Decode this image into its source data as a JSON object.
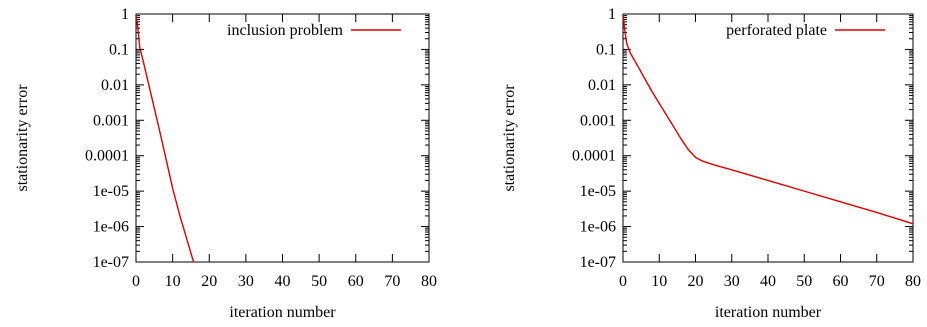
{
  "chart_data": [
    {
      "type": "line",
      "xlabel": "iteration number",
      "ylabel": "stationarity error",
      "xlim": [
        0,
        80
      ],
      "ylim": [
        1e-07,
        1
      ],
      "yscale": "log",
      "xticks": [
        "0",
        "10",
        "20",
        "30",
        "40",
        "50",
        "60",
        "70",
        "80"
      ],
      "yticks": [
        "1e-07",
        "1e-06",
        "1e-05",
        "0.0001",
        "0.001",
        "0.01",
        "0.1",
        "1"
      ],
      "legend_position": "top-right",
      "grid": false,
      "series": [
        {
          "name": "inclusion problem",
          "color": "#dd0000",
          "x": [
            0,
            0.5,
            1,
            2,
            4,
            6,
            8,
            10,
            12,
            14,
            16,
            17.2
          ],
          "y": [
            1,
            0.4,
            0.12,
            0.045,
            0.006,
            0.0008,
            0.0001,
            1.2e-05,
            2e-06,
            4e-07,
            8e-08,
            1e-07
          ]
        }
      ]
    },
    {
      "type": "line",
      "xlabel": "iteration number",
      "ylabel": "stationarity error",
      "xlim": [
        0,
        80
      ],
      "ylim": [
        1e-07,
        1
      ],
      "yscale": "log",
      "xticks": [
        "0",
        "10",
        "20",
        "30",
        "40",
        "50",
        "60",
        "70",
        "80"
      ],
      "yticks": [
        "1e-07",
        "1e-06",
        "1e-05",
        "0.0001",
        "0.001",
        "0.01",
        "0.1",
        "1"
      ],
      "legend_position": "top-right",
      "grid": false,
      "series": [
        {
          "name": "perforated plate",
          "color": "#dd0000",
          "x": [
            0,
            0.5,
            1,
            2,
            4,
            6,
            8,
            10,
            12,
            14,
            16,
            18,
            20,
            22,
            24,
            26,
            30,
            40,
            50,
            60,
            70,
            80
          ],
          "y": [
            1,
            0.35,
            0.15,
            0.08,
            0.035,
            0.015,
            0.0065,
            0.003,
            0.0014,
            0.00065,
            0.0003,
            0.00015,
            9e-05,
            7e-05,
            6e-05,
            5.2e-05,
            4e-05,
            2e-05,
            1e-05,
            5e-06,
            2.5e-06,
            1.2e-06
          ]
        }
      ]
    }
  ]
}
